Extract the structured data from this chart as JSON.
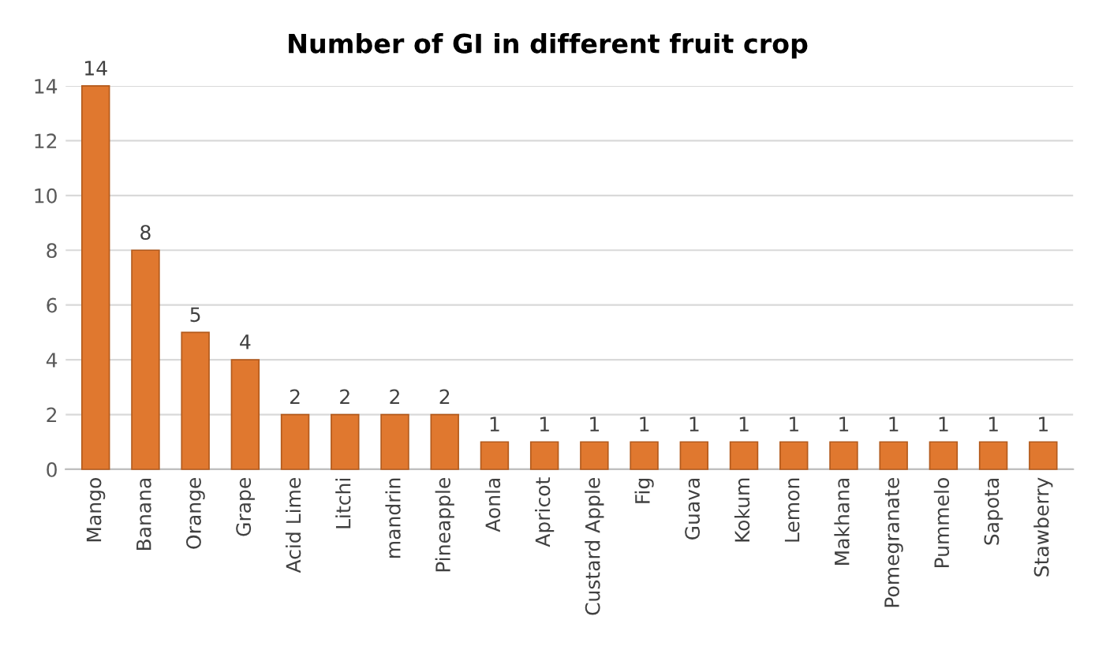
{
  "chart_data": {
    "type": "bar",
    "title": "Number of GI in different fruit crop",
    "categories": [
      "Mango",
      "Banana",
      "Orange",
      "Grape",
      "Acid Lime",
      "Litchi",
      "mandrin",
      "Pineapple",
      "Aonla",
      "Apricot",
      "Custard Apple",
      "Fig",
      "Guava",
      "Kokum",
      "Lemon",
      "Makhana",
      "Pomegranate",
      "Pummelo",
      "Sapota",
      "Stawberry"
    ],
    "values": [
      14,
      8,
      5,
      4,
      2,
      2,
      2,
      2,
      1,
      1,
      1,
      1,
      1,
      1,
      1,
      1,
      1,
      1,
      1,
      1
    ],
    "color": "#e0782f",
    "ylim": [
      0,
      14
    ],
    "yticks": [
      0,
      2,
      4,
      6,
      8,
      10,
      12,
      14
    ],
    "grid": "y",
    "data_labels": true
  }
}
